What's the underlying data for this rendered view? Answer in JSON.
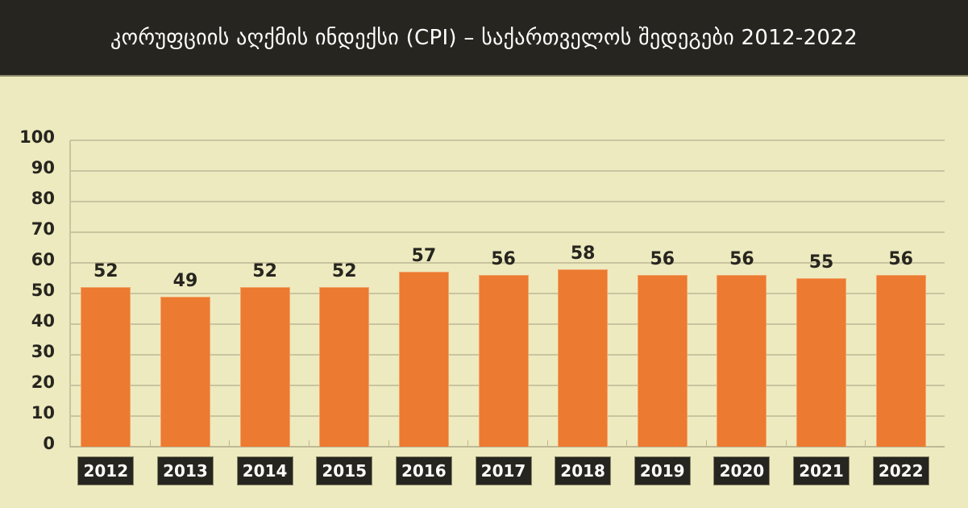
{
  "header": {
    "title": "კორუფციის აღქმის ინდექსი (CPI) – საქართველოს შედეგები 2012-2022"
  },
  "colors": {
    "background": "#edeabf",
    "title_bar": "#26251f",
    "bar": "#ec7a31",
    "grid": "#c9c4a0",
    "text": "#26251f"
  },
  "y_axis": {
    "ticks": [
      "0",
      "10",
      "20",
      "30",
      "40",
      "50",
      "60",
      "70",
      "80",
      "90",
      "100"
    ]
  },
  "bars": [
    {
      "year": "2012",
      "value": "52"
    },
    {
      "year": "2013",
      "value": "49"
    },
    {
      "year": "2014",
      "value": "52"
    },
    {
      "year": "2015",
      "value": "52"
    },
    {
      "year": "2016",
      "value": "57"
    },
    {
      "year": "2017",
      "value": "56"
    },
    {
      "year": "2018",
      "value": "58"
    },
    {
      "year": "2019",
      "value": "56"
    },
    {
      "year": "2020",
      "value": "56"
    },
    {
      "year": "2021",
      "value": "55"
    },
    {
      "year": "2022",
      "value": "56"
    }
  ],
  "chart_data": {
    "type": "bar",
    "title": "კორუფციის აღქმის ინდექსი (CPI) – საქართველოს შედეგები 2012-2022",
    "categories": [
      "2012",
      "2013",
      "2014",
      "2015",
      "2016",
      "2017",
      "2018",
      "2019",
      "2020",
      "2021",
      "2022"
    ],
    "values": [
      52,
      49,
      52,
      52,
      57,
      56,
      58,
      56,
      56,
      55,
      56
    ],
    "xlabel": "",
    "ylabel": "",
    "ylim": [
      0,
      100
    ],
    "yticks": [
      0,
      10,
      20,
      30,
      40,
      50,
      60,
      70,
      80,
      90,
      100
    ],
    "grid": true,
    "data_labels": true,
    "legend": null
  }
}
